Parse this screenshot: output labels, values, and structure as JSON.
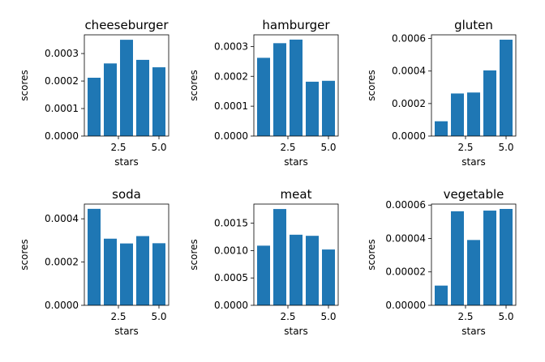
{
  "chart_data": [
    {
      "type": "bar",
      "title": "cheeseburger",
      "xlabel": "stars",
      "ylabel": "scores",
      "x": [
        1,
        2,
        3,
        4,
        5
      ],
      "values": [
        0.000212,
        0.000264,
        0.00035,
        0.000277,
        0.00025
      ],
      "xlim": [
        0.4,
        5.6
      ],
      "ylim": [
        0,
        0.000368
      ],
      "yticks": [
        0,
        0.0001,
        0.0002,
        0.0003
      ],
      "ytick_labels": [
        "0.0000",
        "0.0001",
        "0.0002",
        "0.0003"
      ],
      "xticks": [
        2.5,
        5.0
      ],
      "xtick_labels": [
        "2.5",
        "5.0"
      ],
      "color": "#1f77b4"
    },
    {
      "type": "bar",
      "title": "hamburger",
      "xlabel": "stars",
      "ylabel": "scores",
      "x": [
        1,
        2,
        3,
        4,
        5
      ],
      "values": [
        0.000262,
        0.000311,
        0.000323,
        0.000182,
        0.000185
      ],
      "xlim": [
        0.4,
        5.6
      ],
      "ylim": [
        0,
        0.000339
      ],
      "yticks": [
        0,
        0.0001,
        0.0002,
        0.0003
      ],
      "ytick_labels": [
        "0.0000",
        "0.0001",
        "0.0002",
        "0.0003"
      ],
      "xticks": [
        2.5,
        5.0
      ],
      "xtick_labels": [
        "2.5",
        "5.0"
      ],
      "color": "#1f77b4"
    },
    {
      "type": "bar",
      "title": "gluten",
      "xlabel": "stars",
      "ylabel": "scores",
      "x": [
        1,
        2,
        3,
        4,
        5
      ],
      "values": [
        9.1e-05,
        0.000262,
        0.000268,
        0.000404,
        0.000593
      ],
      "xlim": [
        0.4,
        5.6
      ],
      "ylim": [
        0,
        0.000623
      ],
      "yticks": [
        0,
        0.0002,
        0.0004,
        0.0006
      ],
      "ytick_labels": [
        "0.0000",
        "0.0002",
        "0.0004",
        "0.0006"
      ],
      "xticks": [
        2.5,
        5.0
      ],
      "xtick_labels": [
        "2.5",
        "5.0"
      ],
      "color": "#1f77b4"
    },
    {
      "type": "bar",
      "title": "soda",
      "xlabel": "stars",
      "ylabel": "scores",
      "x": [
        1,
        2,
        3,
        4,
        5
      ],
      "values": [
        0.000446,
        0.000308,
        0.000286,
        0.00032,
        0.000287
      ],
      "xlim": [
        0.4,
        5.6
      ],
      "ylim": [
        0,
        0.000468
      ],
      "yticks": [
        0,
        0.0002,
        0.0004
      ],
      "ytick_labels": [
        "0.0000",
        "0.0002",
        "0.0004"
      ],
      "xticks": [
        2.5,
        5.0
      ],
      "xtick_labels": [
        "2.5",
        "5.0"
      ],
      "color": "#1f77b4"
    },
    {
      "type": "bar",
      "title": "meat",
      "xlabel": "stars",
      "ylabel": "scores",
      "x": [
        1,
        2,
        3,
        4,
        5
      ],
      "values": [
        0.00109,
        0.00176,
        0.00129,
        0.00127,
        0.00102
      ],
      "xlim": [
        0.4,
        5.6
      ],
      "ylim": [
        0,
        0.00185
      ],
      "yticks": [
        0,
        0.0005,
        0.001,
        0.0015
      ],
      "ytick_labels": [
        "0.0000",
        "0.0005",
        "0.0010",
        "0.0015"
      ],
      "xticks": [
        2.5,
        5.0
      ],
      "xtick_labels": [
        "2.5",
        "5.0"
      ],
      "color": "#1f77b4"
    },
    {
      "type": "bar",
      "title": "vegetable",
      "xlabel": "stars",
      "ylabel": "scores",
      "x": [
        1,
        2,
        3,
        4,
        5
      ],
      "values": [
        1.18e-05,
        5.63e-05,
        3.91e-05,
        5.67e-05,
        5.77e-05
      ],
      "xlim": [
        0.4,
        5.6
      ],
      "ylim": [
        0,
        6.06e-05
      ],
      "yticks": [
        0,
        2e-05,
        4e-05,
        6e-05
      ],
      "ytick_labels": [
        "0.00000",
        "0.00002",
        "0.00004",
        "0.00006"
      ],
      "xticks": [
        2.5,
        5.0
      ],
      "xtick_labels": [
        "2.5",
        "5.0"
      ],
      "color": "#1f77b4"
    }
  ]
}
